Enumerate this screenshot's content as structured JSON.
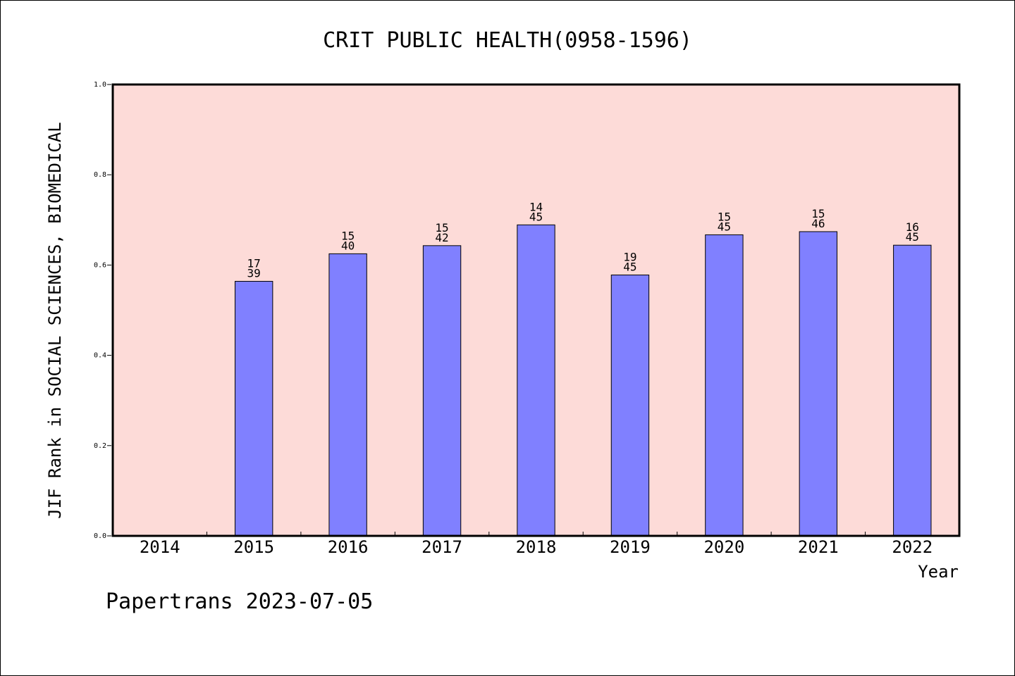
{
  "chart_data": {
    "type": "bar",
    "title": "CRIT PUBLIC HEALTH(0958-1596)",
    "xlabel": "Year",
    "ylabel": "JIF Rank in SOCIAL SCIENCES, BIOMEDICAL",
    "ylim": [
      0,
      1.0
    ],
    "yticks": [
      "0.0",
      "0.2",
      "0.4",
      "0.6",
      "0.8",
      "1.0"
    ],
    "categories": [
      "2014",
      "2015",
      "2016",
      "2017",
      "2018",
      "2019",
      "2020",
      "2021",
      "2022"
    ],
    "values": [
      null,
      0.564,
      0.625,
      0.643,
      0.689,
      0.578,
      0.667,
      0.674,
      0.644
    ],
    "rank": [
      null,
      "17",
      "15",
      "15",
      "14",
      "19",
      "15",
      "15",
      "16"
    ],
    "total": [
      null,
      "39",
      "40",
      "42",
      "45",
      "45",
      "45",
      "46",
      "45"
    ],
    "colors": {
      "plot_background": "#fddbd8",
      "bar_fill": "#8080ff",
      "bar_stroke": "#000000",
      "axis": "#000000"
    }
  },
  "footer": "Papertrans 2023-07-05"
}
